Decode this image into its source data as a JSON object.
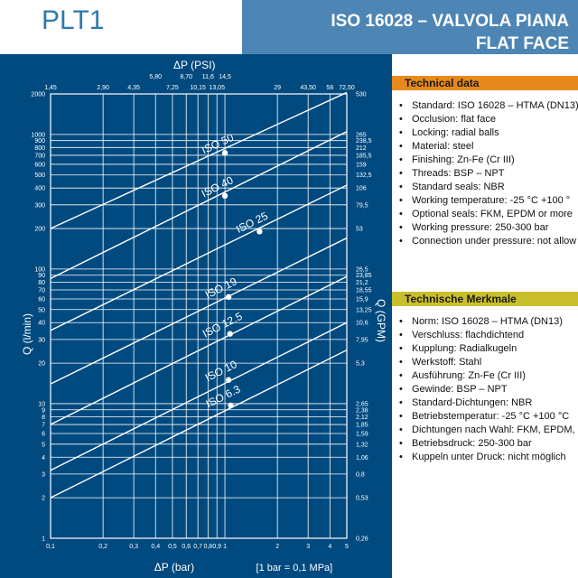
{
  "header": {
    "code": "PLT1",
    "title_line1": "ISO 16028 – VALVOLA PIANA",
    "title_line2": "FLAT FACE"
  },
  "colors": {
    "header_bg": "#4d86b5",
    "chart_bg": "#004a7f",
    "technical_data_bar": "#e8891e",
    "technische_merkmale_bar": "#c9bf2a",
    "code_text": "#2f79ad"
  },
  "technical_data": {
    "title": "Technical data",
    "items": [
      "Standard: ISO 16028 – HTMA (DN13)",
      "Occlusion: flat face",
      "Locking: radial balls",
      "Material: steel",
      "Finishing: Zn-Fe (Cr III)",
      "Threads: BSP – NPT",
      "Standard seals: NBR",
      "Working temperature: -25 °C +100 °",
      "Optional seals: FKM, EPDM or more",
      "Working pressure: 250-300 bar",
      "Connection under pressure: not allow"
    ]
  },
  "technische_merkmale": {
    "title": "Technische Merkmale",
    "items": [
      "Norm: ISO 16028 – HTMA (DN13)",
      "Verschluss: flachdichtend",
      "Kupplung: Radialkugeln",
      "Werkstoff: Stahl",
      "Ausführung: Zn-Fe (Cr III)",
      "Gewinde: BSP – NPT",
      "Standard-Dichtungen: NBR",
      "Betriebstemperatur: -25 °C +100 °C",
      "Dichtungen nach Wahl: FKM, EPDM, us",
      "Betriebsdruck: 250-300 bar",
      "Kuppeln unter Druck: nicht möglich"
    ]
  },
  "chart_data": {
    "type": "line",
    "xscale": "log",
    "yscale": "log",
    "xlim": [
      0.1,
      5
    ],
    "ylim": [
      1,
      2000
    ],
    "grid": true,
    "xlabel": "ΔP (bar)",
    "x_note": "[1 bar = 0,1 MPa]",
    "x2label": "ΔP (PSI)",
    "ylabel": "Q (l/min)",
    "y2label": "Q (GPM)",
    "x_ticks": [
      {
        "v": 0.1,
        "label": "0,1"
      },
      {
        "v": 0.2,
        "label": "0,2"
      },
      {
        "v": 0.3,
        "label": "0,3"
      },
      {
        "v": 0.4,
        "label": "0,4"
      },
      {
        "v": 0.5,
        "label": "0,5"
      },
      {
        "v": 0.6,
        "label": "0,6"
      },
      {
        "v": 0.7,
        "label": "0,7"
      },
      {
        "v": 0.8,
        "label": "0,8"
      },
      {
        "v": 0.9,
        "label": "0,9"
      },
      {
        "v": 1,
        "label": "1"
      },
      {
        "v": 2,
        "label": "2"
      },
      {
        "v": 3,
        "label": "3"
      },
      {
        "v": 4,
        "label": "4"
      },
      {
        "v": 5,
        "label": "5"
      }
    ],
    "x2_ticks": [
      {
        "v": 0.1,
        "label": "1,45"
      },
      {
        "v": 0.2,
        "label": "2,90"
      },
      {
        "v": 0.3,
        "label": "4,35"
      },
      {
        "v": 0.4,
        "label": "5,80"
      },
      {
        "v": 0.5,
        "label": "7,25"
      },
      {
        "v": 0.6,
        "label": "8,70"
      },
      {
        "v": 0.7,
        "label": "10,15"
      },
      {
        "v": 0.8,
        "label": "11,6"
      },
      {
        "v": 0.9,
        "label": "13,05"
      },
      {
        "v": 1,
        "label": "14,5"
      },
      {
        "v": 2,
        "label": "29"
      },
      {
        "v": 3,
        "label": "43,50"
      },
      {
        "v": 4,
        "label": "58"
      },
      {
        "v": 5,
        "label": "72,50"
      }
    ],
    "y_ticks": [
      {
        "v": 1,
        "label": "1"
      },
      {
        "v": 2,
        "label": "2"
      },
      {
        "v": 3,
        "label": "3"
      },
      {
        "v": 4,
        "label": "4"
      },
      {
        "v": 5,
        "label": "5"
      },
      {
        "v": 6,
        "label": "6"
      },
      {
        "v": 7,
        "label": "7"
      },
      {
        "v": 8,
        "label": "8"
      },
      {
        "v": 9,
        "label": "9"
      },
      {
        "v": 10,
        "label": "10"
      },
      {
        "v": 20,
        "label": "20"
      },
      {
        "v": 30,
        "label": "30"
      },
      {
        "v": 40,
        "label": "40"
      },
      {
        "v": 50,
        "label": "50"
      },
      {
        "v": 60,
        "label": "60"
      },
      {
        "v": 70,
        "label": "70"
      },
      {
        "v": 80,
        "label": "80"
      },
      {
        "v": 90,
        "label": "90"
      },
      {
        "v": 100,
        "label": "100"
      },
      {
        "v": 200,
        "label": "200"
      },
      {
        "v": 300,
        "label": "300"
      },
      {
        "v": 400,
        "label": "400"
      },
      {
        "v": 500,
        "label": "500"
      },
      {
        "v": 600,
        "label": "600"
      },
      {
        "v": 700,
        "label": "700"
      },
      {
        "v": 800,
        "label": "800"
      },
      {
        "v": 900,
        "label": "900"
      },
      {
        "v": 1000,
        "label": "1000"
      },
      {
        "v": 2000,
        "label": "2000"
      }
    ],
    "y2_ticks": [
      {
        "v": 1,
        "label": "0,26"
      },
      {
        "v": 2,
        "label": "0,53"
      },
      {
        "v": 3,
        "label": "0,8"
      },
      {
        "v": 4,
        "label": "1,06"
      },
      {
        "v": 5,
        "label": "1,32"
      },
      {
        "v": 6,
        "label": "1,59"
      },
      {
        "v": 7,
        "label": "1,85"
      },
      {
        "v": 8,
        "label": "2,12"
      },
      {
        "v": 9,
        "label": "2,38"
      },
      {
        "v": 10,
        "label": "2,65"
      },
      {
        "v": 20,
        "label": "5,3"
      },
      {
        "v": 30,
        "label": "7,95"
      },
      {
        "v": 40,
        "label": "10,6"
      },
      {
        "v": 50,
        "label": "13,25"
      },
      {
        "v": 60,
        "label": "15,9"
      },
      {
        "v": 70,
        "label": "18,55"
      },
      {
        "v": 80,
        "label": "21,2"
      },
      {
        "v": 90,
        "label": "23,85"
      },
      {
        "v": 100,
        "label": "26,5"
      },
      {
        "v": 200,
        "label": "53"
      },
      {
        "v": 300,
        "label": "79,5"
      },
      {
        "v": 400,
        "label": "106"
      },
      {
        "v": 500,
        "label": "132,5"
      },
      {
        "v": 600,
        "label": "159"
      },
      {
        "v": 700,
        "label": "185,5"
      },
      {
        "v": 800,
        "label": "212"
      },
      {
        "v": 900,
        "label": "238,5"
      },
      {
        "v": 1000,
        "label": "265"
      },
      {
        "v": 2000,
        "label": "530"
      }
    ],
    "series": [
      {
        "name": "ISO 6.3",
        "x": [
          0.1,
          5
        ],
        "y": [
          2.0,
          25
        ],
        "marker": {
          "x": 1.08,
          "y": 9.7
        }
      },
      {
        "name": "ISO 10",
        "x": [
          0.1,
          5
        ],
        "y": [
          3.2,
          40
        ],
        "marker": {
          "x": 1.05,
          "y": 15
        }
      },
      {
        "name": "ISO 12.5",
        "x": [
          0.1,
          5
        ],
        "y": [
          7.0,
          88
        ],
        "marker": {
          "x": 1.07,
          "y": 33
        }
      },
      {
        "name": "ISO 19",
        "x": [
          0.1,
          5
        ],
        "y": [
          14,
          170
        ],
        "marker": {
          "x": 1.05,
          "y": 62
        }
      },
      {
        "name": "ISO 25",
        "x": [
          0.1,
          5
        ],
        "y": [
          35,
          420
        ],
        "marker": {
          "x": 1.58,
          "y": 190
        }
      },
      {
        "name": "ISO 40",
        "x": [
          0.1,
          5
        ],
        "y": [
          85,
          1050
        ],
        "marker": {
          "x": 1.0,
          "y": 350
        }
      },
      {
        "name": "ISO 50",
        "x": [
          0.1,
          5
        ],
        "y": [
          200,
          2050
        ],
        "marker": {
          "x": 1.0,
          "y": 730
        }
      }
    ]
  }
}
